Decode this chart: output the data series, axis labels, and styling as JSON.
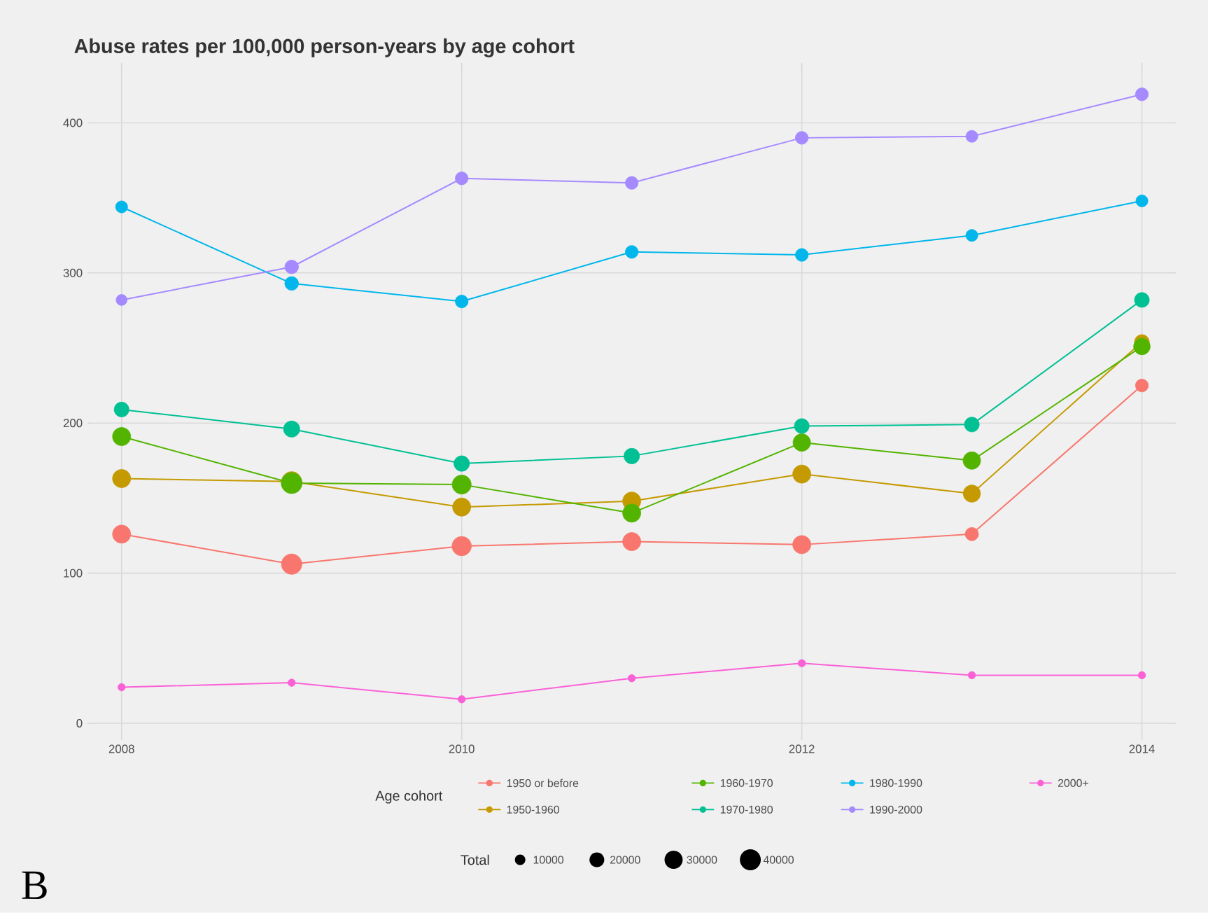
{
  "chart_data": {
    "type": "bubble",
    "title": "Abuse rates per 100,000 person-years by age cohort",
    "x": [
      2008,
      2009,
      2010,
      2011,
      2012,
      2013,
      2014
    ],
    "xlim": [
      2007.8,
      2014.2
    ],
    "xticks": [
      2008,
      2010,
      2012,
      2014
    ],
    "ylim": [
      -11,
      440
    ],
    "yticks": [
      0,
      100,
      200,
      300,
      400
    ],
    "grid": true,
    "legend": "bottom",
    "marker": "circle",
    "legend_title": "Age cohort",
    "size_legend": [
      10000,
      20000,
      30000,
      40000
    ],
    "annotations": [
      "Total",
      "B"
    ],
    "series": [
      {
        "name": "1950 or before",
        "color": "#f8766d",
        "values": [
          126,
          106,
          118,
          121,
          119,
          126,
          225
        ],
        "sizes": [
          30000,
          38000,
          34000,
          30000,
          30000,
          16000,
          15000
        ]
      },
      {
        "name": "1950-1960",
        "color": "#c49a00",
        "values": [
          163,
          161,
          144,
          148,
          166,
          153,
          254
        ],
        "sizes": [
          30000,
          36000,
          30000,
          30000,
          30000,
          27000,
          20000
        ]
      },
      {
        "name": "1960-1970",
        "color": "#53b400",
        "values": [
          191,
          160,
          159,
          140,
          187,
          175,
          251
        ],
        "sizes": [
          30000,
          40000,
          33000,
          30000,
          28000,
          28000,
          25000
        ]
      },
      {
        "name": "1970-1980",
        "color": "#00c094",
        "values": [
          209,
          196,
          173,
          178,
          198,
          199,
          282
        ],
        "sizes": [
          20000,
          24000,
          22000,
          22000,
          20000,
          20000,
          20000
        ]
      },
      {
        "name": "1980-1990",
        "color": "#00b6eb",
        "values": [
          344,
          293,
          281,
          314,
          312,
          325,
          348
        ],
        "sizes": [
          13000,
          17000,
          15000,
          15000,
          15000,
          13000,
          13000
        ]
      },
      {
        "name": "1990-2000",
        "color": "#a58aff",
        "values": [
          282,
          304,
          363,
          360,
          390,
          391,
          419
        ],
        "sizes": [
          11000,
          17000,
          15000,
          15000,
          15000,
          13000,
          15000
        ]
      },
      {
        "name": "2000+",
        "color": "#fb61d7",
        "values": [
          24,
          27,
          16,
          30,
          40,
          32,
          32
        ],
        "sizes": [
          5000,
          5000,
          5000,
          5000,
          5000,
          5000,
          5000
        ]
      },
      {
        "type": "line",
        "marker": "none",
        "color": "#f8766d",
        "values": [
          126,
          106,
          118,
          121,
          119,
          126,
          225
        ]
      },
      {
        "type": "line",
        "marker": "none",
        "color": "#c49a00",
        "values": [
          163,
          161,
          144,
          148,
          166,
          153,
          254
        ]
      },
      {
        "type": "line",
        "marker": "none",
        "color": "#53b400",
        "values": [
          191,
          160,
          159,
          140,
          187,
          175,
          251
        ]
      },
      {
        "type": "line",
        "marker": "none",
        "color": "#00c094",
        "values": [
          209,
          196,
          173,
          178,
          198,
          199,
          282
        ]
      },
      {
        "type": "line",
        "marker": "none",
        "color": "#00b6eb",
        "values": [
          344,
          293,
          281,
          314,
          312,
          325,
          348
        ]
      },
      {
        "type": "line",
        "marker": "none",
        "color": "#a58aff",
        "values": [
          282,
          304,
          363,
          360,
          390,
          391,
          419
        ]
      },
      {
        "type": "line",
        "marker": "none",
        "color": "#fb61d7",
        "values": [
          24,
          27,
          16,
          30,
          40,
          32,
          32
        ]
      }
    ]
  }
}
